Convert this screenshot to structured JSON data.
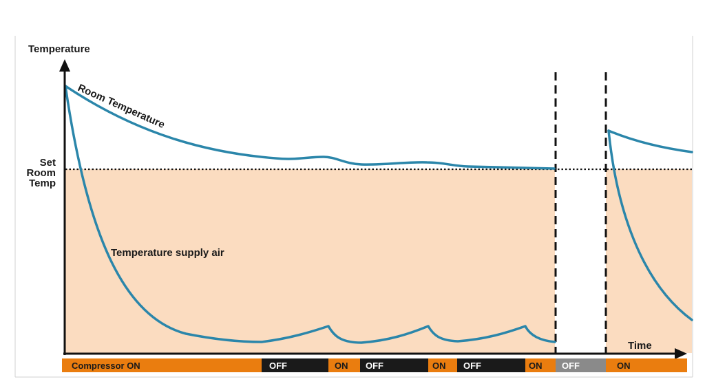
{
  "diagram": {
    "y_axis_label": "Temperature",
    "x_axis_label": "Time",
    "setpoint_label": [
      "Set",
      "Room",
      "Temp"
    ],
    "room_curve_label": "Room Temperature",
    "supply_curve_label": "Temperature supply air"
  },
  "compressor_bar": [
    {
      "label": "Compressor ON",
      "state": "on"
    },
    {
      "label": "OFF",
      "state": "off"
    },
    {
      "label": "ON",
      "state": "on"
    },
    {
      "label": "OFF",
      "state": "off"
    },
    {
      "label": "ON",
      "state": "on"
    },
    {
      "label": "OFF",
      "state": "off"
    },
    {
      "label": "ON",
      "state": "on"
    },
    {
      "label": "OFF",
      "state": "stopped"
    },
    {
      "label": "ON",
      "state": "on"
    }
  ],
  "colors": {
    "fill_below_setpoint": "#fbdcc0",
    "curve": "#2b86aa",
    "on": "#ea7d0f",
    "off": "#1a1a1a",
    "stopped": "#8a8a8a",
    "axis": "#111111"
  }
}
